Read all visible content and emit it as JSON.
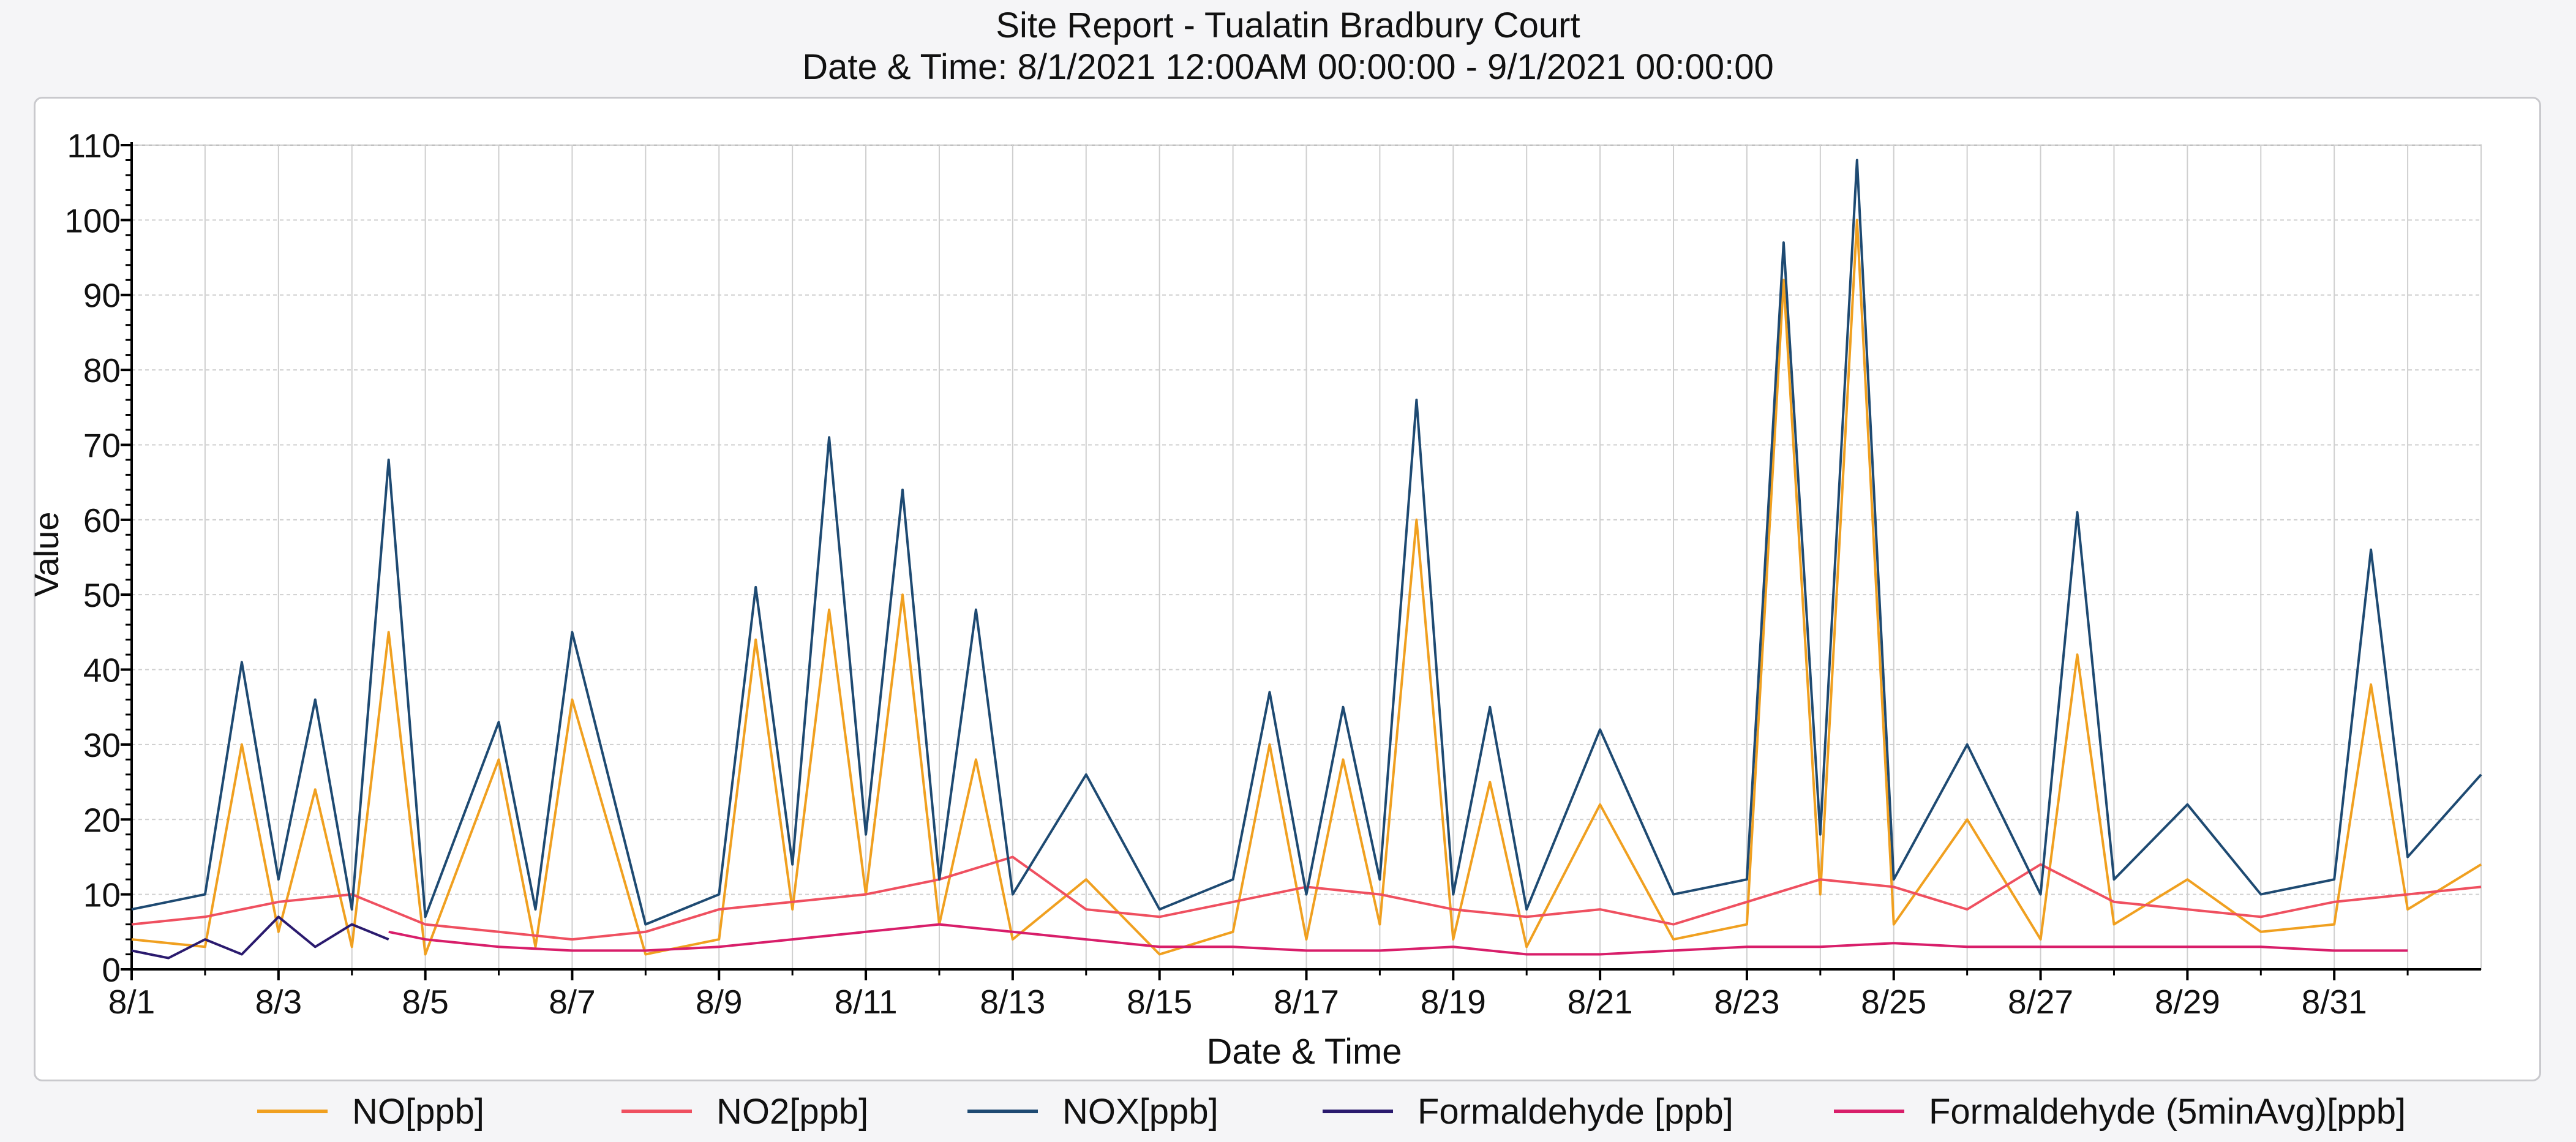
{
  "chart_data": {
    "type": "line",
    "title": "Site Report - Tualatin Bradbury Court",
    "subtitle": "Date & Time: 8/1/2021 12:00AM 00:00:00 - 9/1/2021 00:00:00",
    "xlabel": "Date & Time",
    "ylabel": "Value",
    "x_range": [
      "2021-08-01",
      "2021-09-02"
    ],
    "ylim": [
      0,
      110
    ],
    "y_ticks": [
      0,
      10,
      20,
      30,
      40,
      50,
      60,
      70,
      80,
      90,
      100,
      110
    ],
    "x_tick_labels": [
      "8/1",
      "8/3",
      "8/5",
      "8/7",
      "8/9",
      "8/11",
      "8/13",
      "8/15",
      "8/17",
      "8/19",
      "8/21",
      "8/23",
      "8/25",
      "8/27",
      "8/29",
      "8/31"
    ],
    "grid": true,
    "legend_position": "bottom",
    "series": [
      {
        "name": "NO[ppb]",
        "color": "#f0a020",
        "x": [
          "2021-08-01",
          "2021-08-02",
          "2021-08-02 12:00",
          "2021-08-03",
          "2021-08-03 12:00",
          "2021-08-04",
          "2021-08-04 12:00",
          "2021-08-05",
          "2021-08-06",
          "2021-08-06 12:00",
          "2021-08-07",
          "2021-08-08",
          "2021-08-09",
          "2021-08-09 12:00",
          "2021-08-10",
          "2021-08-10 12:00",
          "2021-08-11",
          "2021-08-11 12:00",
          "2021-08-12",
          "2021-08-12 12:00",
          "2021-08-13",
          "2021-08-14",
          "2021-08-15",
          "2021-08-16",
          "2021-08-16 12:00",
          "2021-08-17",
          "2021-08-17 12:00",
          "2021-08-18",
          "2021-08-18 12:00",
          "2021-08-19",
          "2021-08-19 12:00",
          "2021-08-20",
          "2021-08-21",
          "2021-08-22",
          "2021-08-23",
          "2021-08-23 12:00",
          "2021-08-24",
          "2021-08-24 12:00",
          "2021-08-25",
          "2021-08-26",
          "2021-08-27",
          "2021-08-27 12:00",
          "2021-08-28",
          "2021-08-29",
          "2021-08-30",
          "2021-08-31",
          "2021-08-31 12:00",
          "2021-09-01",
          "2021-09-02"
        ],
        "values": [
          4,
          3,
          30,
          5,
          24,
          3,
          45,
          2,
          28,
          3,
          36,
          2,
          4,
          44,
          8,
          48,
          10,
          50,
          6,
          28,
          4,
          12,
          2,
          5,
          30,
          4,
          28,
          6,
          60,
          4,
          25,
          3,
          22,
          4,
          6,
          92,
          10,
          100,
          6,
          20,
          4,
          42,
          6,
          12,
          5,
          6,
          38,
          8,
          14
        ]
      },
      {
        "name": "NO2[ppb]",
        "color": "#ef5060",
        "x": [
          "2021-08-01",
          "2021-08-02",
          "2021-08-03",
          "2021-08-04",
          "2021-08-05",
          "2021-08-06",
          "2021-08-07",
          "2021-08-08",
          "2021-08-09",
          "2021-08-10",
          "2021-08-11",
          "2021-08-12",
          "2021-08-13",
          "2021-08-14",
          "2021-08-15",
          "2021-08-16",
          "2021-08-17",
          "2021-08-18",
          "2021-08-19",
          "2021-08-20",
          "2021-08-21",
          "2021-08-22",
          "2021-08-23",
          "2021-08-24",
          "2021-08-25",
          "2021-08-26",
          "2021-08-27",
          "2021-08-28",
          "2021-08-29",
          "2021-08-30",
          "2021-08-31",
          "2021-09-01",
          "2021-09-02"
        ],
        "values": [
          6,
          7,
          9,
          10,
          6,
          5,
          4,
          5,
          8,
          9,
          10,
          12,
          15,
          8,
          7,
          9,
          11,
          10,
          8,
          7,
          8,
          6,
          9,
          12,
          11,
          8,
          14,
          9,
          8,
          7,
          9,
          10,
          11
        ]
      },
      {
        "name": "NOX[ppb]",
        "color": "#1e4a72",
        "x": [
          "2021-08-01",
          "2021-08-02",
          "2021-08-02 12:00",
          "2021-08-03",
          "2021-08-03 12:00",
          "2021-08-04",
          "2021-08-04 12:00",
          "2021-08-05",
          "2021-08-06",
          "2021-08-06 12:00",
          "2021-08-07",
          "2021-08-08",
          "2021-08-09",
          "2021-08-09 12:00",
          "2021-08-10",
          "2021-08-10 12:00",
          "2021-08-11",
          "2021-08-11 12:00",
          "2021-08-12",
          "2021-08-12 12:00",
          "2021-08-13",
          "2021-08-14",
          "2021-08-15",
          "2021-08-16",
          "2021-08-16 12:00",
          "2021-08-17",
          "2021-08-17 12:00",
          "2021-08-18",
          "2021-08-18 12:00",
          "2021-08-19",
          "2021-08-19 12:00",
          "2021-08-20",
          "2021-08-21",
          "2021-08-22",
          "2021-08-23",
          "2021-08-23 12:00",
          "2021-08-24",
          "2021-08-24 12:00",
          "2021-08-25",
          "2021-08-26",
          "2021-08-27",
          "2021-08-27 12:00",
          "2021-08-28",
          "2021-08-29",
          "2021-08-30",
          "2021-08-31",
          "2021-08-31 12:00",
          "2021-09-01",
          "2021-09-02"
        ],
        "values": [
          8,
          10,
          41,
          12,
          36,
          8,
          68,
          7,
          33,
          8,
          45,
          6,
          10,
          51,
          14,
          71,
          18,
          64,
          12,
          48,
          10,
          26,
          8,
          12,
          37,
          10,
          35,
          12,
          76,
          10,
          35,
          8,
          32,
          10,
          12,
          97,
          18,
          108,
          12,
          30,
          10,
          61,
          12,
          22,
          10,
          12,
          56,
          15,
          26
        ]
      },
      {
        "name": "Formaldehyde [ppb]",
        "color": "#2a1a6e",
        "x": [
          "2021-08-01",
          "2021-08-01 12:00",
          "2021-08-02",
          "2021-08-02 12:00",
          "2021-08-03",
          "2021-08-03 12:00",
          "2021-08-04",
          "2021-08-04 12:00"
        ],
        "values": [
          2.5,
          1.5,
          4,
          2,
          7,
          3,
          6,
          4
        ]
      },
      {
        "name": "Formaldehyde (5minAvg)[ppb]",
        "color": "#d81e6a",
        "x": [
          "2021-08-04 12:00",
          "2021-08-05",
          "2021-08-06",
          "2021-08-07",
          "2021-08-08",
          "2021-08-09",
          "2021-08-10",
          "2021-08-11",
          "2021-08-12",
          "2021-08-13",
          "2021-08-14",
          "2021-08-15",
          "2021-08-16",
          "2021-08-17",
          "2021-08-18",
          "2021-08-19",
          "2021-08-20",
          "2021-08-21",
          "2021-08-22",
          "2021-08-23",
          "2021-08-24",
          "2021-08-25",
          "2021-08-26",
          "2021-08-27",
          "2021-08-28",
          "2021-08-29",
          "2021-08-30",
          "2021-08-31",
          "2021-09-01"
        ],
        "values": [
          5,
          4,
          3,
          2.5,
          2.5,
          3,
          4,
          5,
          6,
          5,
          4,
          3,
          3,
          2.5,
          2.5,
          3,
          2,
          2,
          2.5,
          3,
          3,
          3.5,
          3,
          3,
          3,
          3,
          3,
          2.5,
          2.5
        ]
      }
    ]
  }
}
